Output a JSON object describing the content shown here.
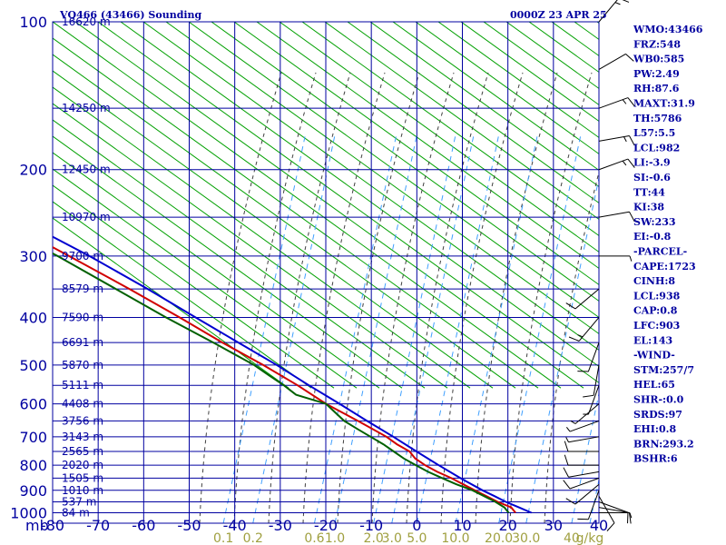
{
  "header": {
    "station": "VQ466 (43466) Sounding",
    "time": "0000Z 23 APR 25"
  },
  "colors": {
    "grid": "#0000a0",
    "dry_adiabat": "#00a000",
    "moist_adiabat": "#404040",
    "mixing_ratio": "#40a0ff",
    "temperature": "#d00000",
    "dewpoint": "#006000",
    "parcel": "#0000d0",
    "wind": "#000000"
  },
  "chart_data": {
    "type": "line",
    "title": "",
    "xlabel": "",
    "ylabel": "mb",
    "pressure_ticks": [
      "100",
      "200",
      "300",
      "400",
      "500",
      "600",
      "700",
      "800",
      "900",
      "1000"
    ],
    "temperature_ticks": [
      "-80",
      "-70",
      "-60",
      "-50",
      "-40",
      "-30",
      "-20",
      "-10",
      "0",
      "10",
      "20",
      "30",
      "40"
    ],
    "mixing_ratio_labels": [
      {
        "label": "0.1",
        "temp": -42.5
      },
      {
        "label": "0.2",
        "temp": -36
      },
      {
        "label": "0.6",
        "temp": -22.5
      },
      {
        "label": "1.0",
        "temp": -18
      },
      {
        "label": "2.0",
        "temp": -9.5
      },
      {
        "label": "3.0",
        "temp": -5.5
      },
      {
        "label": "5.0",
        "temp": 0
      },
      {
        "label": "10.0",
        "temp": 8.5
      },
      {
        "label": "20.0",
        "temp": 18
      },
      {
        "label": "30.0",
        "temp": 24
      },
      {
        "label": "40",
        "temp": 34
      },
      {
        "label": "g/kg",
        "temp": 38
      }
    ],
    "height_labels": [
      {
        "label": "16620 m",
        "p": 100
      },
      {
        "label": "14250 m",
        "p": 150
      },
      {
        "label": "12450 m",
        "p": 200
      },
      {
        "label": "10970 m",
        "p": 250
      },
      {
        "label": "9700 m",
        "p": 300
      },
      {
        "label": "8579 m",
        "p": 350
      },
      {
        "label": "7590 m",
        "p": 400
      },
      {
        "label": "6691 m",
        "p": 450
      },
      {
        "label": "5870 m",
        "p": 500
      },
      {
        "label": "5111 m",
        "p": 550
      },
      {
        "label": "4408 m",
        "p": 600
      },
      {
        "label": "3756 m",
        "p": 650
      },
      {
        "label": "3143 m",
        "p": 700
      },
      {
        "label": "2565 m",
        "p": 750
      },
      {
        "label": "2020 m",
        "p": 800
      },
      {
        "label": "1505 m",
        "p": 850
      },
      {
        "label": "1010 m",
        "p": 900
      },
      {
        "label": "537 m",
        "p": 950
      },
      {
        "label": "84 m",
        "p": 1000
      }
    ],
    "pressure_range": [
      100,
      1050
    ],
    "temperature_range": [
      -80,
      40
    ],
    "series": [
      {
        "key": "temperature",
        "points": [
          [
            1000,
            23.5
          ],
          [
            975,
            23.5
          ],
          [
            950,
            21.5
          ],
          [
            925,
            20
          ],
          [
            900,
            18.5
          ],
          [
            875,
            17
          ],
          [
            850,
            15.5
          ],
          [
            825,
            13.5
          ],
          [
            800,
            12
          ],
          [
            775,
            11
          ],
          [
            750,
            11
          ],
          [
            725,
            9.5
          ],
          [
            700,
            8.5
          ],
          [
            650,
            5
          ],
          [
            600,
            1
          ],
          [
            550,
            -2
          ],
          [
            500,
            -6
          ],
          [
            450,
            -11
          ],
          [
            400,
            -16
          ],
          [
            350,
            -22
          ],
          [
            300,
            -29.5
          ],
          [
            250,
            -38.5
          ],
          [
            200,
            -50
          ],
          [
            175,
            -55.5
          ],
          [
            150,
            -63
          ],
          [
            125,
            -71.5
          ],
          [
            100,
            -80
          ]
        ]
      },
      {
        "key": "dewpoint",
        "points": [
          [
            1000,
            22
          ],
          [
            975,
            22
          ],
          [
            950,
            21
          ],
          [
            925,
            19.5
          ],
          [
            900,
            18
          ],
          [
            875,
            15.5
          ],
          [
            850,
            13.5
          ],
          [
            825,
            11.5
          ],
          [
            800,
            10
          ],
          [
            775,
            8.5
          ],
          [
            750,
            7.5
          ],
          [
            725,
            6.5
          ],
          [
            700,
            5
          ],
          [
            675,
            3.5
          ],
          [
            650,
            2
          ],
          [
            600,
            1
          ],
          [
            575,
            -4
          ],
          [
            550,
            -5
          ],
          [
            525,
            -6.5
          ],
          [
            500,
            -8
          ],
          [
            450,
            -13
          ],
          [
            400,
            -19
          ],
          [
            350,
            -25
          ],
          [
            300,
            -32
          ],
          [
            250,
            -41.5
          ],
          [
            200,
            -53
          ],
          [
            175,
            -59
          ],
          [
            150,
            -66
          ],
          [
            125,
            -73.5
          ],
          [
            115,
            -76
          ]
        ]
      },
      {
        "key": "parcel",
        "points": [
          [
            1000,
            27
          ],
          [
            975,
            25.2
          ],
          [
            950,
            23.3
          ],
          [
            925,
            21.8
          ],
          [
            900,
            20.2
          ],
          [
            850,
            17.5
          ],
          [
            800,
            15
          ],
          [
            750,
            12.5
          ],
          [
            700,
            10
          ],
          [
            650,
            7
          ],
          [
            600,
            4
          ],
          [
            550,
            0.5
          ],
          [
            500,
            -3
          ],
          [
            450,
            -7.5
          ],
          [
            400,
            -12.5
          ],
          [
            350,
            -18
          ],
          [
            300,
            -25
          ],
          [
            250,
            -34.5
          ],
          [
            200,
            -46.5
          ],
          [
            175,
            -54
          ],
          [
            150,
            -62
          ],
          [
            125,
            -71
          ],
          [
            110,
            -76
          ]
        ]
      }
    ]
  },
  "indices": [
    "WMO:43466",
    "FRZ:548",
    "WB0:585",
    "PW:2.49",
    "RH:87.6",
    "MAXT:31.9",
    "TH:5786",
    "L57:5.5",
    "LCL:982",
    "LI:-3.9",
    "SI:-0.6",
    "TT:44",
    "KI:38",
    "SW:233",
    "EI:-0.8",
    "-PARCEL-",
    "CAPE:1723",
    "CINH:8",
    "LCL:938",
    "CAP:0.8",
    "LFC:903",
    "EL:143",
    "-WIND-",
    "STM:257/7",
    "HEL:65",
    "SHR-:0.0",
    "SRDS:97",
    "EHI:0.8",
    "BRN:293.2",
    "BSHR:6"
  ],
  "wind_barbs": [
    {
      "p": 1000,
      "dir": 90,
      "spd": 5
    },
    {
      "p": 975,
      "dir": 100,
      "spd": 10
    },
    {
      "p": 950,
      "dir": 110,
      "spd": 10
    },
    {
      "p": 925,
      "dir": 150,
      "spd": 10
    },
    {
      "p": 900,
      "dir": 200,
      "spd": 10
    },
    {
      "p": 875,
      "dir": 230,
      "spd": 10
    },
    {
      "p": 850,
      "dir": 250,
      "spd": 10
    },
    {
      "p": 825,
      "dir": 260,
      "spd": 10
    },
    {
      "p": 800,
      "dir": 270,
      "spd": 10
    },
    {
      "p": 750,
      "dir": 270,
      "spd": 10
    },
    {
      "p": 700,
      "dir": 260,
      "spd": 5
    },
    {
      "p": 650,
      "dir": 250,
      "spd": 5
    },
    {
      "p": 600,
      "dir": 230,
      "spd": 5
    },
    {
      "p": 550,
      "dir": 200,
      "spd": 5
    },
    {
      "p": 500,
      "dir": 190,
      "spd": 10
    },
    {
      "p": 450,
      "dir": 200,
      "spd": 10
    },
    {
      "p": 400,
      "dir": 220,
      "spd": 15
    },
    {
      "p": 350,
      "dir": 230,
      "spd": 10
    },
    {
      "p": 300,
      "dir": 90,
      "spd": 5
    },
    {
      "p": 250,
      "dir": 80,
      "spd": 10
    },
    {
      "p": 200,
      "dir": 70,
      "spd": 15
    },
    {
      "p": 175,
      "dir": 80,
      "spd": 15
    },
    {
      "p": 150,
      "dir": 70,
      "spd": 15
    },
    {
      "p": 125,
      "dir": 60,
      "spd": 10
    },
    {
      "p": 100,
      "dir": 40,
      "spd": 15
    }
  ]
}
